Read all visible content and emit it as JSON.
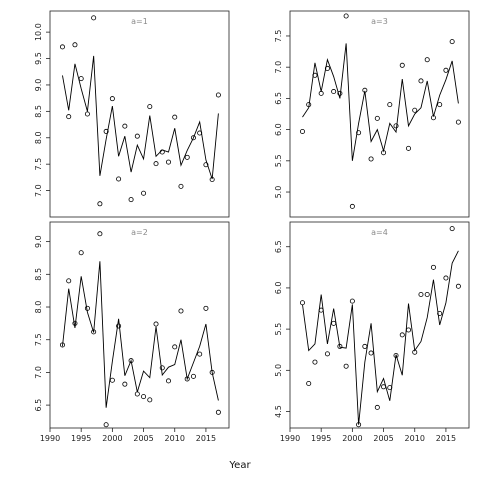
{
  "chart_data": {
    "type": "scatter",
    "xlabel": "Year",
    "panels": [
      {
        "title": "a=1",
        "x": [
          1992,
          1993,
          1994,
          1995,
          1996,
          1997,
          1998,
          1999,
          2000,
          2001,
          2002,
          2003,
          2004,
          2005,
          2006,
          2007,
          2008,
          2009,
          2010,
          2011,
          2012,
          2013,
          2014,
          2015,
          2016,
          2017
        ],
        "ylim": [
          6.5,
          10.4
        ],
        "yticks": [
          7.0,
          7.5,
          8.0,
          8.5,
          9.0,
          9.5,
          10.0
        ],
        "series": [
          {
            "type": "points",
            "values": [
              9.72,
              8.4,
              9.76,
              9.12,
              8.45,
              10.27,
              6.75,
              8.12,
              8.74,
              7.22,
              8.22,
              6.83,
              8.03,
              6.95,
              8.59,
              7.51,
              7.73,
              7.54,
              8.39,
              7.08,
              7.63,
              8.0,
              8.09,
              7.49,
              7.21,
              8.81
            ]
          },
          {
            "type": "line",
            "values": [
              9.18,
              8.52,
              9.4,
              8.93,
              8.5,
              9.55,
              7.28,
              7.97,
              8.6,
              7.65,
              8.03,
              7.35,
              7.86,
              7.6,
              8.42,
              7.65,
              7.77,
              7.73,
              8.18,
              7.48,
              7.76,
              8.0,
              8.3,
              7.58,
              7.22,
              8.46
            ]
          }
        ]
      },
      {
        "title": "a=3",
        "x": [
          1992,
          1993,
          1994,
          1995,
          1996,
          1997,
          1998,
          1999,
          2000,
          2001,
          2002,
          2003,
          2004,
          2005,
          2006,
          2007,
          2008,
          2009,
          2010,
          2011,
          2012,
          2013,
          2014,
          2015,
          2016,
          2017
        ],
        "ylim": [
          4.6,
          7.9
        ],
        "yticks": [
          5.0,
          5.5,
          6.0,
          6.5,
          7.0,
          7.5
        ],
        "series": [
          {
            "type": "points",
            "values": [
              5.97,
              6.4,
              6.87,
              6.58,
              6.98,
              6.61,
              6.58,
              7.82,
              4.77,
              5.95,
              6.63,
              5.53,
              6.18,
              5.63,
              6.4,
              6.06,
              7.03,
              5.7,
              6.31,
              6.78,
              7.12,
              6.19,
              6.4,
              6.95,
              7.41,
              6.12
            ]
          },
          {
            "type": "line",
            "values": [
              6.2,
              6.35,
              7.07,
              6.61,
              7.12,
              6.85,
              6.5,
              7.38,
              5.5,
              6.1,
              6.62,
              5.81,
              6.0,
              5.66,
              6.1,
              5.96,
              6.81,
              6.06,
              6.25,
              6.35,
              6.78,
              6.21,
              6.55,
              6.8,
              7.1,
              6.42
            ]
          }
        ]
      },
      {
        "title": "a=2",
        "x": [
          1992,
          1993,
          1994,
          1995,
          1996,
          1997,
          1998,
          1999,
          2000,
          2001,
          2002,
          2003,
          2004,
          2005,
          2006,
          2007,
          2008,
          2009,
          2010,
          2011,
          2012,
          2013,
          2014,
          2015,
          2016,
          2017
        ],
        "ylim": [
          6.15,
          9.3
        ],
        "yticks": [
          6.5,
          7.0,
          7.5,
          8.0,
          8.5,
          9.0
        ],
        "series": [
          {
            "type": "points",
            "values": [
              7.42,
              8.4,
              7.75,
              8.83,
              7.98,
              7.62,
              9.12,
              6.2,
              6.88,
              7.71,
              6.82,
              7.18,
              6.67,
              6.63,
              6.58,
              7.74,
              7.07,
              6.87,
              7.39,
              7.94,
              6.9,
              6.94,
              7.28,
              7.98,
              7.0,
              6.39
            ]
          },
          {
            "type": "line",
            "values": [
              7.4,
              8.28,
              7.68,
              8.47,
              7.92,
              7.61,
              8.7,
              6.46,
              7.17,
              7.82,
              6.95,
              7.18,
              6.7,
              7.02,
              6.92,
              7.7,
              6.96,
              7.08,
              7.12,
              7.5,
              6.9,
              7.15,
              7.4,
              7.74,
              7.0,
              6.57
            ]
          }
        ]
      },
      {
        "title": "a=4",
        "x": [
          1992,
          1993,
          1994,
          1995,
          1996,
          1997,
          1998,
          1999,
          2000,
          2001,
          2002,
          2003,
          2004,
          2005,
          2006,
          2007,
          2008,
          2009,
          2010,
          2011,
          2012,
          2013,
          2014,
          2015,
          2016,
          2017
        ],
        "ylim": [
          4.3,
          6.8
        ],
        "yticks": [
          4.5,
          5.0,
          5.5,
          6.0,
          6.5
        ],
        "series": [
          {
            "type": "points",
            "values": [
              5.82,
              4.84,
              5.1,
              5.73,
              5.2,
              5.57,
              5.29,
              5.05,
              5.84,
              4.34,
              5.29,
              5.21,
              4.55,
              4.8,
              4.79,
              5.18,
              5.43,
              5.49,
              5.22,
              5.92,
              5.92,
              6.25,
              5.69,
              6.12,
              6.72,
              6.02
            ]
          },
          {
            "type": "line",
            "values": [
              5.8,
              5.24,
              5.32,
              5.92,
              5.32,
              5.75,
              5.28,
              5.27,
              5.8,
              4.34,
              5.1,
              5.57,
              4.74,
              4.9,
              4.63,
              5.19,
              4.94,
              5.81,
              5.24,
              5.35,
              5.64,
              6.1,
              5.55,
              5.82,
              6.3,
              6.45
            ]
          }
        ]
      }
    ],
    "xticks": [
      1990,
      1995,
      2000,
      2005,
      2010,
      2015
    ],
    "xlim": [
      1990,
      2018.7
    ]
  }
}
